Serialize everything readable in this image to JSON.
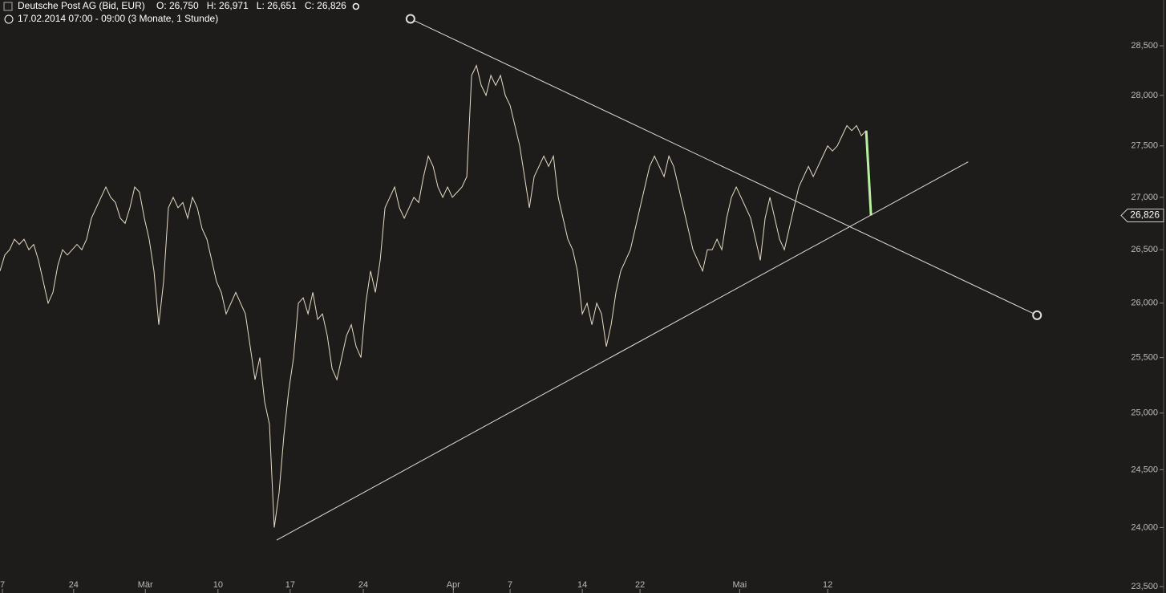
{
  "chart_data": {
    "type": "line",
    "title": "Deutsche Post AG (Bid, EUR)",
    "ohlc_labels": [
      "O: 26,750",
      "H: 26,971",
      "L: 26,651",
      "C: 26,826"
    ],
    "subtitle": "17.02.2014 07:00 - 09:00 (3 Monate, 1 Stunde)",
    "log_scale": true,
    "color": "#e6dcc4",
    "last_color": "#b8f0a0",
    "values": [
      26300,
      26450,
      26500,
      26600,
      26550,
      26600,
      26500,
      26550,
      26400,
      26200,
      26000,
      26100,
      26350,
      26500,
      26450,
      26500,
      26550,
      26500,
      26600,
      26800,
      26900,
      27000,
      27100,
      27000,
      26950,
      26800,
      26750,
      26900,
      27100,
      27050,
      26800,
      26600,
      26300,
      25800,
      26200,
      26900,
      27000,
      26900,
      26950,
      26800,
      27000,
      26900,
      26700,
      26600,
      26400,
      26200,
      26100,
      25900,
      26000,
      26100,
      26000,
      25900,
      25600,
      25300,
      25500,
      25100,
      24900,
      24000,
      24300,
      24800,
      25200,
      25500,
      26000,
      26050,
      25900,
      26100,
      25850,
      25900,
      25700,
      25400,
      25300,
      25500,
      25700,
      25800,
      25600,
      25500,
      26000,
      26300,
      26100,
      26400,
      26900,
      27000,
      27100,
      26900,
      26800,
      26900,
      27000,
      26950,
      27200,
      27400,
      27300,
      27100,
      27000,
      27100,
      27000,
      27050,
      27100,
      27200,
      28200,
      28300,
      28100,
      28000,
      28200,
      28100,
      28200,
      28000,
      27900,
      27700,
      27500,
      27200,
      26900,
      27200,
      27300,
      27400,
      27300,
      27400,
      27000,
      26800,
      26600,
      26500,
      26300,
      25900,
      26000,
      25800,
      26000,
      25900,
      25600,
      25800,
      26100,
      26300,
      26400,
      26500,
      26700,
      26900,
      27100,
      27300,
      27400,
      27300,
      27200,
      27400,
      27300,
      27100,
      26900,
      26700,
      26500,
      26400,
      26300,
      26500,
      26500,
      26600,
      26500,
      26800,
      27000,
      27100,
      27000,
      26900,
      26800,
      26600,
      26400,
      26800,
      27000,
      26800,
      26600,
      26500,
      26700,
      26900,
      27100,
      27200,
      27300,
      27200,
      27300,
      27400,
      27500,
      27450,
      27500,
      27600,
      27700,
      27650,
      27700,
      27600,
      27650,
      26826
    ],
    "xlim": [
      0,
      242.3
    ],
    "xticks": [
      {
        "value": 0.5,
        "label": "7"
      },
      {
        "value": 15.3,
        "label": "24"
      },
      {
        "value": 30.2,
        "label": "Mär"
      },
      {
        "value": 45.3,
        "label": "10"
      },
      {
        "value": 60.3,
        "label": "17"
      },
      {
        "value": 75.5,
        "label": "24"
      },
      {
        "value": 94.2,
        "label": "Apr"
      },
      {
        "value": 106,
        "label": "7"
      },
      {
        "value": 121,
        "label": "14"
      },
      {
        "value": 133,
        "label": "22"
      },
      {
        "value": 153.7,
        "label": "Mai"
      },
      {
        "value": 172,
        "label": "12"
      }
    ],
    "ylim": [
      23446,
      28969
    ],
    "yticks": [
      {
        "value": 23500,
        "label": "23,500"
      },
      {
        "value": 24000,
        "label": "24,000"
      },
      {
        "value": 24500,
        "label": "24,500"
      },
      {
        "value": 25000,
        "label": "25,000"
      },
      {
        "value": 25500,
        "label": "25,500"
      },
      {
        "value": 26000,
        "label": "26,000"
      },
      {
        "value": 26500,
        "label": "26,500"
      },
      {
        "value": 27000,
        "label": "27,000"
      },
      {
        "value": 27500,
        "label": "27,500"
      },
      {
        "value": 28000,
        "label": "28,000"
      },
      {
        "value": 28500,
        "label": "28,500"
      }
    ],
    "last_price": {
      "value": 26826,
      "label": "26,826"
    },
    "trendlines": [
      {
        "x": [
          85.3,
          215.5
        ],
        "y": [
          28775,
          25888
        ]
      },
      {
        "x": [
          57.5,
          201.2
        ],
        "y": [
          23893,
          27344
        ]
      }
    ]
  }
}
